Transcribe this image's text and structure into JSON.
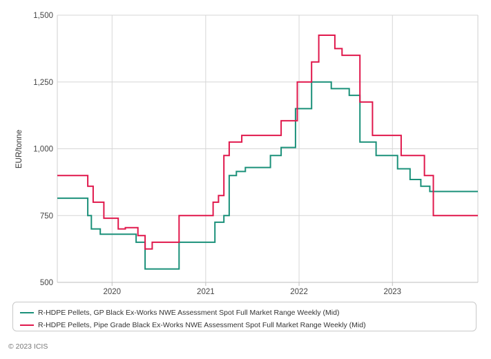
{
  "chart_data": {
    "type": "line",
    "title": "",
    "xlabel": "",
    "ylabel": "EUR/tonne",
    "ylim": [
      500,
      1500
    ],
    "xlim": [
      "2019-06-01",
      "2023-12-01"
    ],
    "y_ticks": [
      500,
      750,
      1000,
      1250,
      1500
    ],
    "y_tick_labels": [
      "500",
      "750",
      "1,000",
      "1,250",
      "1,500"
    ],
    "x_ticks": [
      "2020-01-01",
      "2021-01-01",
      "2022-01-01",
      "2023-01-01"
    ],
    "x_tick_labels": [
      "2020",
      "2021",
      "2022",
      "2023"
    ],
    "grid": true,
    "step": true,
    "legend_position": "bottom",
    "series": [
      {
        "name": "R-HDPE Pellets, GP Black Ex-Works NWE Assessment Spot Full Market Range Weekly (Mid)",
        "color": "#1a9079",
        "points": [
          [
            "2019-06-01",
            815
          ],
          [
            "2019-09-28",
            750
          ],
          [
            "2019-10-12",
            700
          ],
          [
            "2019-11-16",
            680
          ],
          [
            "2020-04-04",
            650
          ],
          [
            "2020-05-09",
            550
          ],
          [
            "2020-09-19",
            650
          ],
          [
            "2021-02-06",
            725
          ],
          [
            "2021-03-13",
            750
          ],
          [
            "2021-04-03",
            900
          ],
          [
            "2021-05-01",
            915
          ],
          [
            "2021-06-05",
            930
          ],
          [
            "2021-09-11",
            975
          ],
          [
            "2021-10-23",
            1005
          ],
          [
            "2021-12-18",
            1150
          ],
          [
            "2022-02-19",
            1250
          ],
          [
            "2022-05-07",
            1225
          ],
          [
            "2022-07-16",
            1200
          ],
          [
            "2022-08-27",
            1025
          ],
          [
            "2022-10-29",
            975
          ],
          [
            "2023-01-21",
            925
          ],
          [
            "2023-03-11",
            885
          ],
          [
            "2023-04-22",
            860
          ],
          [
            "2023-05-27",
            840
          ],
          [
            "2023-12-01",
            840
          ]
        ]
      },
      {
        "name": "R-HDPE Pellets, Pipe Grade Black Ex-Works NWE Assessment Spot Full Market Range Weekly (Mid)",
        "color": "#e0174b",
        "points": [
          [
            "2019-06-01",
            900
          ],
          [
            "2019-09-28",
            860
          ],
          [
            "2019-10-19",
            800
          ],
          [
            "2019-11-30",
            740
          ],
          [
            "2020-01-25",
            700
          ],
          [
            "2020-02-22",
            705
          ],
          [
            "2020-04-11",
            675
          ],
          [
            "2020-05-09",
            625
          ],
          [
            "2020-06-06",
            650
          ],
          [
            "2020-09-19",
            750
          ],
          [
            "2021-01-30",
            800
          ],
          [
            "2021-02-20",
            825
          ],
          [
            "2021-03-13",
            975
          ],
          [
            "2021-04-03",
            1025
          ],
          [
            "2021-05-22",
            1050
          ],
          [
            "2021-10-23",
            1105
          ],
          [
            "2021-12-25",
            1250
          ],
          [
            "2022-02-19",
            1325
          ],
          [
            "2022-03-19",
            1425
          ],
          [
            "2022-05-21",
            1375
          ],
          [
            "2022-06-18",
            1350
          ],
          [
            "2022-08-27",
            1175
          ],
          [
            "2022-10-15",
            1050
          ],
          [
            "2023-02-04",
            975
          ],
          [
            "2023-05-06",
            900
          ],
          [
            "2023-06-10",
            750
          ],
          [
            "2023-12-01",
            750
          ]
        ]
      }
    ]
  },
  "footer": {
    "copyright": "© 2023 ICIS"
  }
}
